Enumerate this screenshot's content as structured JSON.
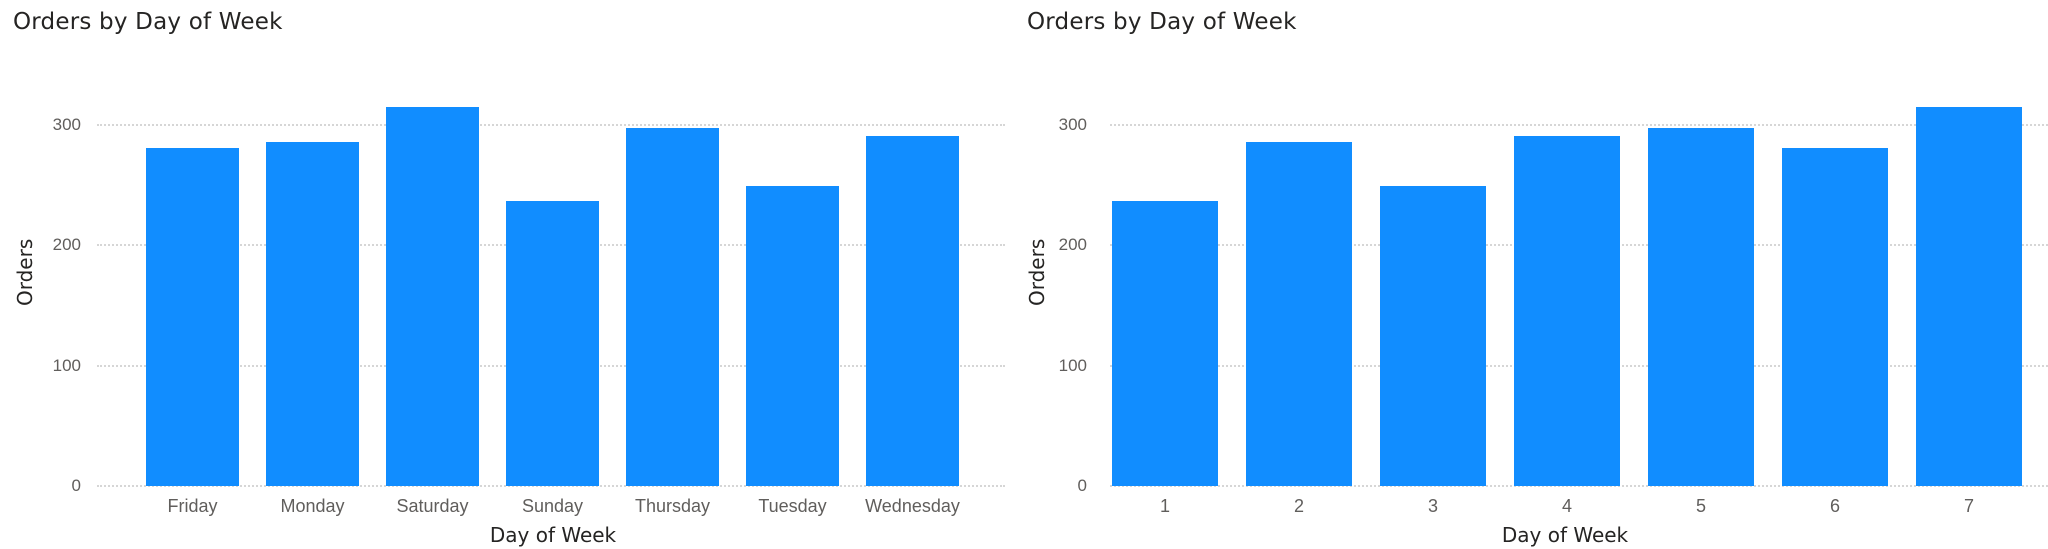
{
  "chart_data": [
    {
      "type": "bar",
      "title": "Orders by Day of Week",
      "xlabel": "Day of Week",
      "ylabel": "Orders",
      "categories": [
        "Friday",
        "Monday",
        "Saturday",
        "Sunday",
        "Thursday",
        "Tuesday",
        "Wednesday"
      ],
      "values": [
        280,
        285,
        314,
        236,
        297,
        249,
        290
      ],
      "ylim": [
        0,
        320
      ],
      "yticks": [
        "0",
        "100",
        "200",
        "300"
      ],
      "grid": true,
      "legend": "none",
      "color": "#118DFF"
    },
    {
      "type": "bar",
      "title": "Orders by Day of Week",
      "xlabel": "Day of Week",
      "ylabel": "Orders",
      "categories": [
        "1",
        "2",
        "3",
        "4",
        "5",
        "6",
        "7"
      ],
      "values": [
        236,
        285,
        249,
        290,
        297,
        280,
        314
      ],
      "ylim": [
        0,
        320
      ],
      "yticks": [
        "0",
        "100",
        "200",
        "300"
      ],
      "grid": true,
      "legend": "none",
      "color": "#118DFF"
    }
  ],
  "colors": {
    "bar": "#118DFF",
    "title": "#252423",
    "tick": "#605E5C",
    "grid": "#D6D6D6"
  }
}
